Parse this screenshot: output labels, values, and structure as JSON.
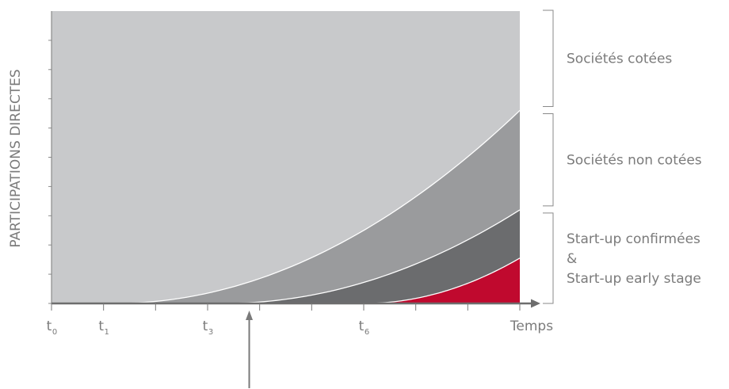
{
  "chart_data": {
    "type": "area",
    "title": "",
    "ylabel": "PARTICIPATIONS  DIRECTES",
    "xlabel": "Temps",
    "tick_labels": [
      {
        "base": "t",
        "sub": "0",
        "x": 0
      },
      {
        "base": "t",
        "sub": "1",
        "x": 1
      },
      {
        "base": "t",
        "sub": "3",
        "x": 3
      },
      {
        "base": "t",
        "sub": "6",
        "x": 6
      }
    ],
    "xlim": [
      0,
      9
    ],
    "ylim": [
      0,
      1
    ],
    "curves": [
      {
        "start": 1.2,
        "end_value": 0.66
      },
      {
        "start": 3.3,
        "end_value": 0.32
      },
      {
        "start": 6.0,
        "end_value": 0.155
      }
    ],
    "bands": [
      {
        "label": "Sociétés cotées",
        "color": "#c8c9cb"
      },
      {
        "label": "Sociétés non cotées",
        "color": "#9a9b9d"
      },
      {
        "label": "Start-up confirmées",
        "color": "#6b6c6e"
      },
      {
        "label": "Start-up early stage",
        "color": "#c0092e"
      }
    ],
    "bracket_labels": [
      {
        "lines": [
          "Sociétés cotées"
        ]
      },
      {
        "lines": [
          "Sociétés non cotées"
        ]
      },
      {
        "lines": [
          "Start-up confirmées",
          "&",
          "Start-up early stage"
        ]
      }
    ],
    "marker_x": 3.8
  }
}
